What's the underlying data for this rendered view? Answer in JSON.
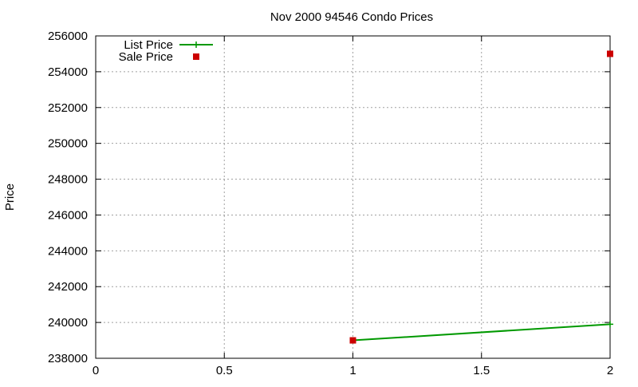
{
  "chart_data": {
    "type": "line",
    "title": "Nov 2000 94546 Condo Prices",
    "xlabel": "",
    "ylabel": "Price",
    "xlim": [
      0,
      2
    ],
    "ylim": [
      238000,
      256000
    ],
    "xticks": [
      0,
      0.5,
      1,
      1.5,
      2
    ],
    "xtick_labels": [
      "0",
      "0.5",
      "1",
      "1.5",
      "2"
    ],
    "yticks": [
      238000,
      240000,
      242000,
      244000,
      246000,
      248000,
      250000,
      252000,
      254000,
      256000
    ],
    "ytick_labels": [
      "238000",
      "240000",
      "242000",
      "244000",
      "246000",
      "248000",
      "250000",
      "252000",
      "254000",
      "256000"
    ],
    "grid": true,
    "legend_position": "top-left",
    "series": [
      {
        "name": "List Price",
        "style": "lines+points",
        "marker": "plus",
        "color": "#009900",
        "x": [
          1,
          2
        ],
        "y": [
          239000,
          239900
        ]
      },
      {
        "name": "Sale Price",
        "style": "points",
        "marker": "square",
        "color": "#cc0000",
        "x": [
          1,
          2
        ],
        "y": [
          239000,
          255000
        ]
      }
    ]
  }
}
